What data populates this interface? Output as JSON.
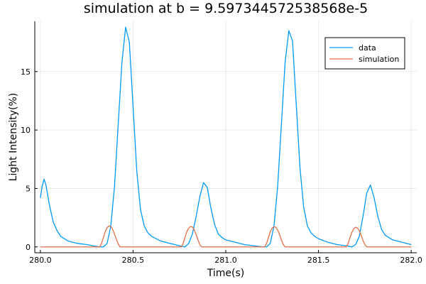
{
  "chart_data": {
    "type": "line",
    "title": "simulation at b = 9.597344572538568e-5",
    "xlabel": "Time(s)",
    "ylabel": "Light Intensity(%)",
    "xlim": [
      279.97,
      282.03
    ],
    "ylim": [
      -0.5,
      19.3
    ],
    "xticks": [
      280.0,
      280.5,
      281.0,
      281.5,
      282.0
    ],
    "xtick_labels": [
      "280.0",
      "280.5",
      "281.0",
      "281.5",
      "282.0"
    ],
    "yticks": [
      0,
      5,
      10,
      15
    ],
    "ytick_labels": [
      "0",
      "5",
      "10",
      "15"
    ],
    "grid": true,
    "legend_position": "top-right",
    "series": [
      {
        "name": "data",
        "color": "#009AFA",
        "x": [
          280.0,
          280.01,
          280.02,
          280.03,
          280.05,
          280.07,
          280.09,
          280.11,
          280.15,
          280.2,
          280.25,
          280.3,
          280.32,
          280.34,
          280.36,
          280.38,
          280.4,
          280.42,
          280.44,
          280.46,
          280.48,
          280.5,
          280.52,
          280.54,
          280.56,
          280.58,
          280.6,
          280.65,
          280.7,
          280.75,
          280.78,
          280.8,
          280.82,
          280.84,
          280.86,
          280.88,
          280.9,
          280.92,
          280.94,
          280.96,
          280.98,
          281.0,
          281.05,
          281.1,
          281.15,
          281.2,
          281.22,
          281.24,
          281.26,
          281.28,
          281.3,
          281.32,
          281.34,
          281.36,
          281.38,
          281.4,
          281.42,
          281.44,
          281.46,
          281.48,
          281.5,
          281.55,
          281.6,
          281.65,
          281.68,
          281.7,
          281.72,
          281.74,
          281.76,
          281.78,
          281.8,
          281.82,
          281.84,
          281.86,
          281.9,
          281.95,
          282.0
        ],
        "y": [
          4.2,
          5.2,
          5.8,
          5.3,
          3.5,
          2.1,
          1.4,
          0.9,
          0.5,
          0.3,
          0.2,
          0.05,
          0.0,
          0.0,
          0.3,
          1.8,
          5.2,
          10.5,
          15.8,
          18.8,
          17.5,
          12.0,
          6.5,
          3.2,
          1.8,
          1.2,
          0.9,
          0.5,
          0.3,
          0.1,
          0.0,
          0.3,
          1.1,
          2.6,
          4.3,
          5.5,
          5.1,
          3.3,
          1.9,
          1.1,
          0.8,
          0.6,
          0.4,
          0.2,
          0.1,
          0.0,
          0.0,
          0.3,
          1.8,
          5.2,
          10.5,
          15.8,
          18.5,
          17.6,
          12.2,
          6.8,
          3.4,
          1.8,
          1.2,
          0.9,
          0.7,
          0.4,
          0.2,
          0.1,
          0.0,
          0.2,
          0.9,
          2.6,
          4.6,
          5.3,
          4.2,
          2.6,
          1.5,
          1.0,
          0.6,
          0.4,
          0.2
        ]
      },
      {
        "name": "simulation",
        "color": "#E26F46",
        "x": [
          280.0,
          280.32,
          280.33,
          280.34,
          280.35,
          280.36,
          280.37,
          280.38,
          280.39,
          280.4,
          280.41,
          280.42,
          280.43,
          281.0,
          280.76,
          280.77,
          280.78,
          280.79,
          280.8,
          280.81,
          280.82,
          280.83,
          280.84,
          280.85,
          280.86,
          280.87,
          281.21,
          281.22,
          281.23,
          281.24,
          281.25,
          281.26,
          281.27,
          281.28,
          281.29,
          281.3,
          281.31,
          281.32,
          281.65,
          281.66,
          281.67,
          281.68,
          281.69,
          281.7,
          281.71,
          281.72,
          281.73,
          281.74,
          281.75,
          281.76,
          282.0
        ],
        "y": [
          0.0,
          0.0,
          0.3,
          0.8,
          1.3,
          1.65,
          1.8,
          1.75,
          1.5,
          1.1,
          0.65,
          0.25,
          0.0,
          0.0,
          0.0,
          0.3,
          0.8,
          1.3,
          1.6,
          1.75,
          1.7,
          1.45,
          1.05,
          0.6,
          0.2,
          0.0,
          0.0,
          0.3,
          0.8,
          1.3,
          1.6,
          1.72,
          1.68,
          1.45,
          1.05,
          0.6,
          0.2,
          0.0,
          0.0,
          0.3,
          0.8,
          1.25,
          1.55,
          1.68,
          1.62,
          1.4,
          1.0,
          0.55,
          0.2,
          0.0,
          0.0
        ]
      }
    ]
  }
}
